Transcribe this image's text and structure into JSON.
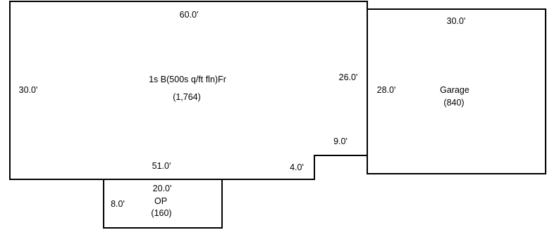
{
  "colors": {
    "line": "#000000",
    "background": "#ffffff"
  },
  "house": {
    "area_code": "1s B(500s q/ft fln)Fr",
    "area_sqft": "(1,764)",
    "dims": {
      "top": "60.0'",
      "left": "30.0'",
      "right": "26.0'",
      "bottom": "51.0'",
      "notch_width": "4.0'",
      "notch_depth": "9.0'"
    }
  },
  "garage": {
    "name": "Garage",
    "area_sqft": "(840)",
    "dims": {
      "top": "30.0'",
      "side": "28.0'"
    }
  },
  "porch": {
    "name": "OP",
    "area_sqft": "(160)",
    "dims": {
      "top": "20.0'",
      "side": "8.0'"
    }
  }
}
